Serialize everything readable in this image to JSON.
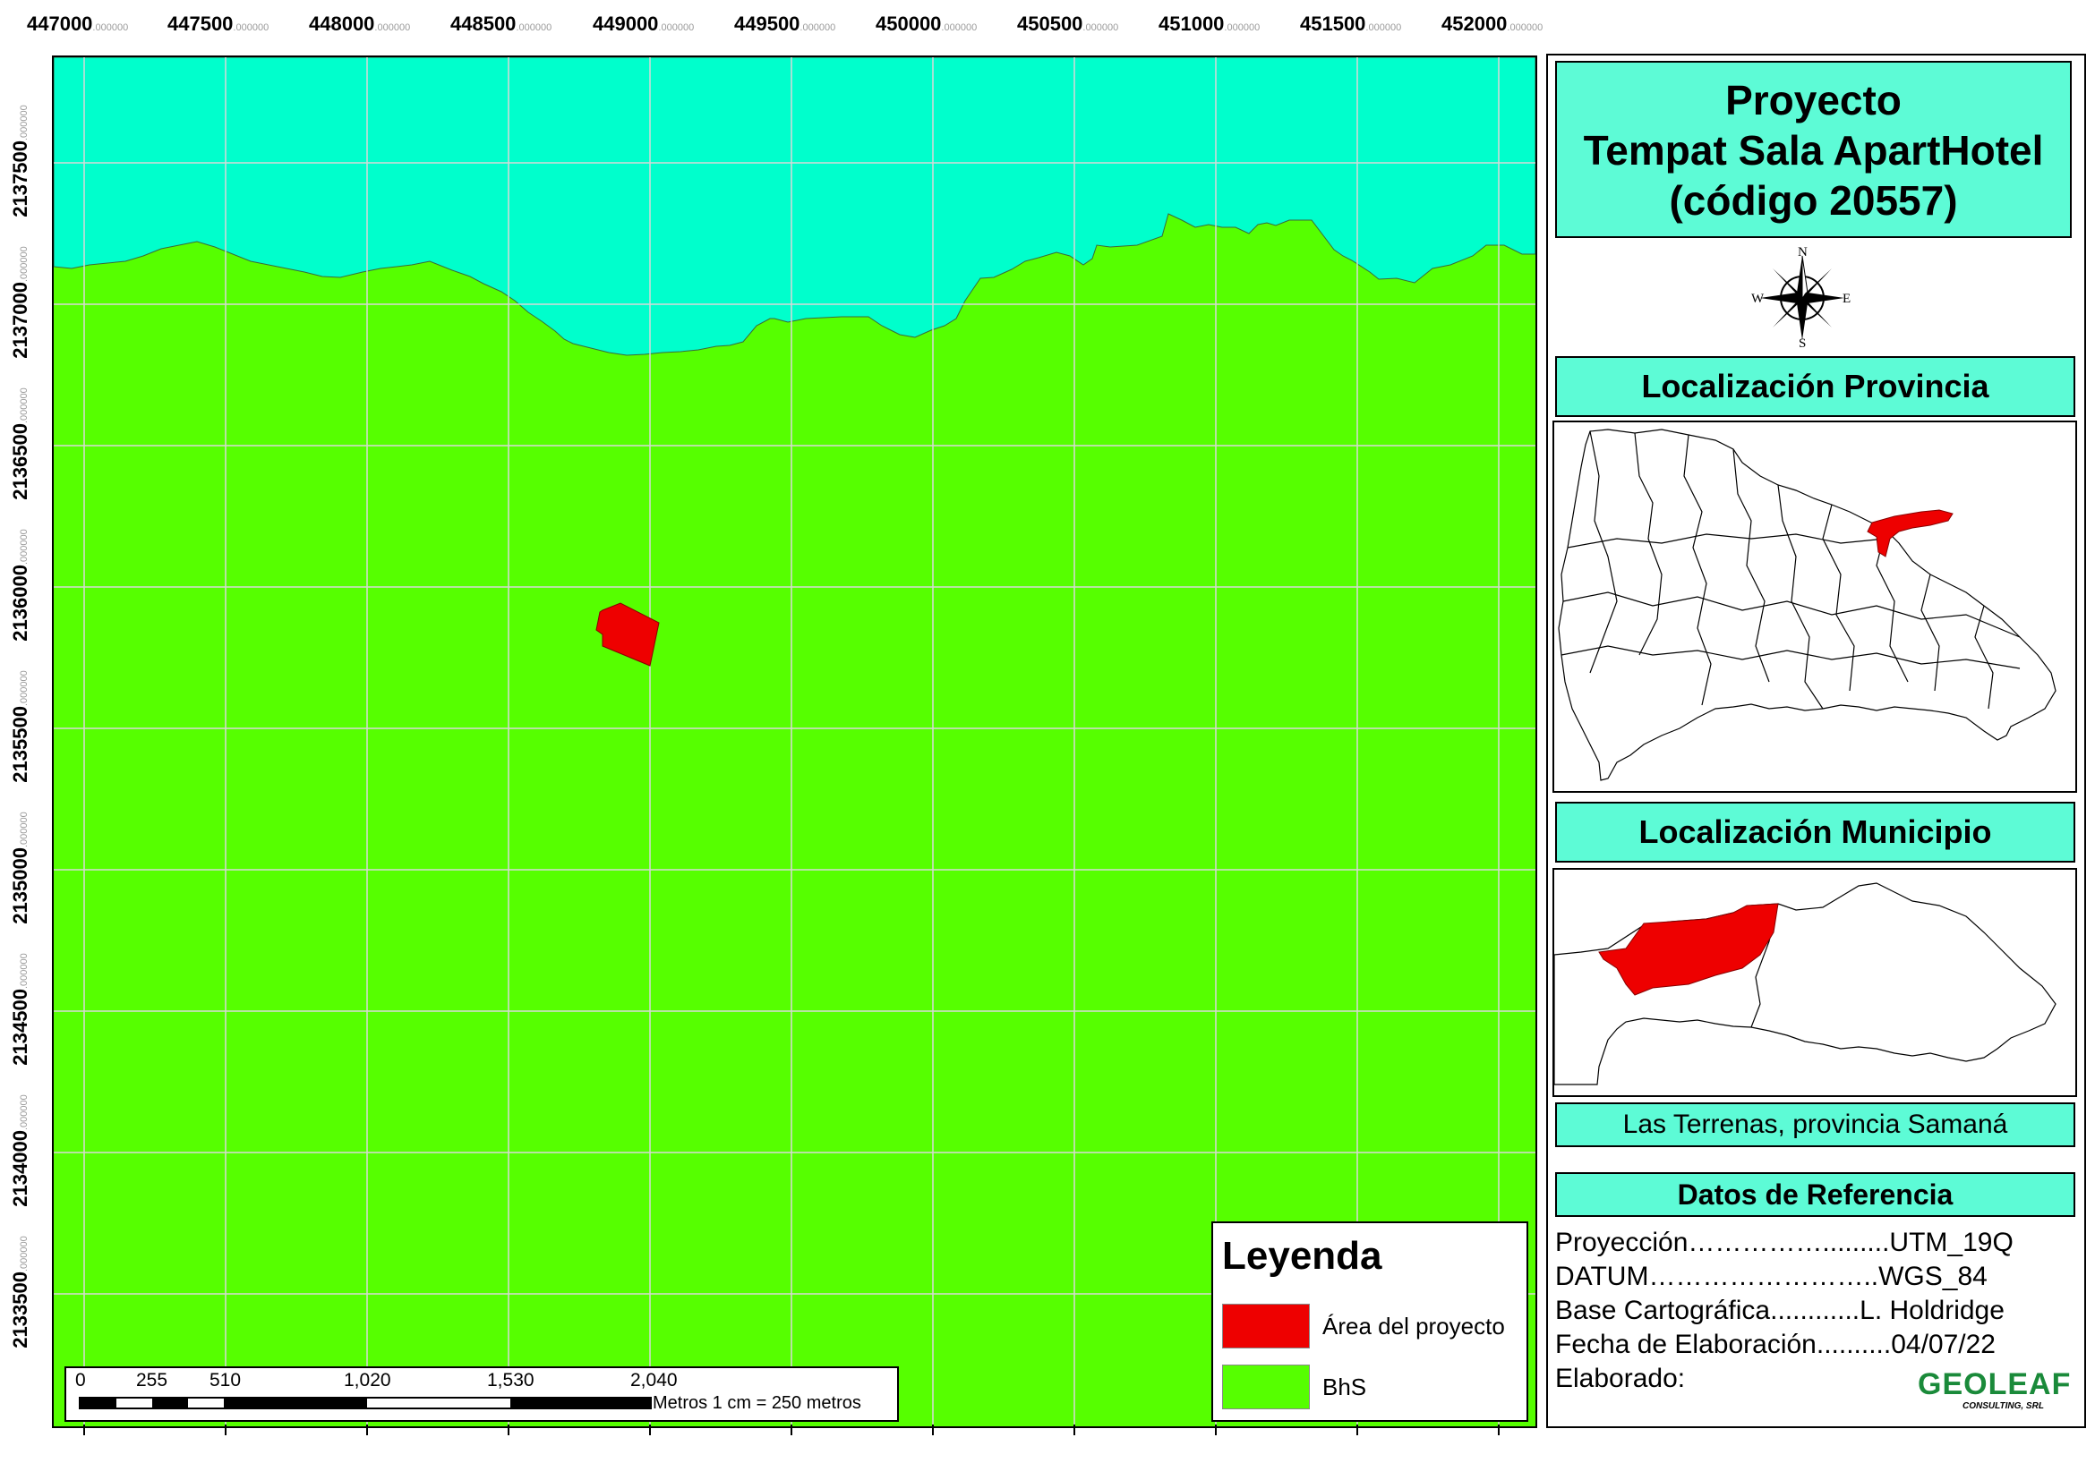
{
  "map": {
    "x_ticks": [
      {
        "label": "447000",
        "suffix": ".000000"
      },
      {
        "label": "447500",
        "suffix": ".000000"
      },
      {
        "label": "448000",
        "suffix": ".000000"
      },
      {
        "label": "448500",
        "suffix": ".000000"
      },
      {
        "label": "449000",
        "suffix": ".000000"
      },
      {
        "label": "449500",
        "suffix": ".000000"
      },
      {
        "label": "450000",
        "suffix": ".000000"
      },
      {
        "label": "450500",
        "suffix": ".000000"
      },
      {
        "label": "451000",
        "suffix": ".000000"
      },
      {
        "label": "451500",
        "suffix": ".000000"
      },
      {
        "label": "452000",
        "suffix": ".000000"
      }
    ],
    "y_ticks": [
      {
        "label": "2137500",
        "suffix": ".000000"
      },
      {
        "label": "2137000",
        "suffix": ".000000"
      },
      {
        "label": "2136500",
        "suffix": ".000000"
      },
      {
        "label": "2136000",
        "suffix": ".000000"
      },
      {
        "label": "2135500",
        "suffix": ".000000"
      },
      {
        "label": "2135000",
        "suffix": ".000000"
      },
      {
        "label": "2134500",
        "suffix": ".000000"
      },
      {
        "label": "2134000",
        "suffix": ".000000"
      },
      {
        "label": "2133500",
        "suffix": ".000000"
      }
    ],
    "colors": {
      "sea": "#00ffcc",
      "land": "#56ff00",
      "project": "#ee0000",
      "grid": "#d8d8d8"
    }
  },
  "legend": {
    "title": "Leyenda",
    "items": [
      {
        "label": "Área del proyecto",
        "color": "#ee0000"
      },
      {
        "label": "BhS",
        "color": "#56ff00"
      }
    ]
  },
  "scale_bar": {
    "labels": [
      "0",
      "255",
      "510",
      "1,020",
      "1,530",
      "2,040"
    ],
    "unit": "Metros 1 cm = 250 metros"
  },
  "panel": {
    "title_lines": [
      "Proyecto",
      "Tempat Sala ApartHotel",
      "(código 20557)"
    ],
    "compass": {
      "n": "N",
      "s": "S",
      "e": "E",
      "w": "W"
    },
    "provincia_header": "Localización Provincia",
    "municipio_header": "Localización Municipio",
    "location": "Las Terrenas, provincia Samaná",
    "ref_header": "Datos de Referencia",
    "ref_rows": [
      {
        "label": "Proyección",
        "dots": "…………….........",
        "value": "UTM_19Q"
      },
      {
        "label": "DATUM",
        "dots": "……………………..",
        "value": "WGS_84"
      },
      {
        "label": "Base Cartográfica",
        "dots": "............",
        "value": "L. Holdridge"
      },
      {
        "label": "Fecha de Elaboración",
        "dots": "..........",
        "value": "04/07/22"
      },
      {
        "label": "Elaborado:",
        "dots": "",
        "value": ""
      }
    ],
    "logo_text": "GEOLEAF",
    "logo_sub": "CONSULTING, SRL"
  }
}
